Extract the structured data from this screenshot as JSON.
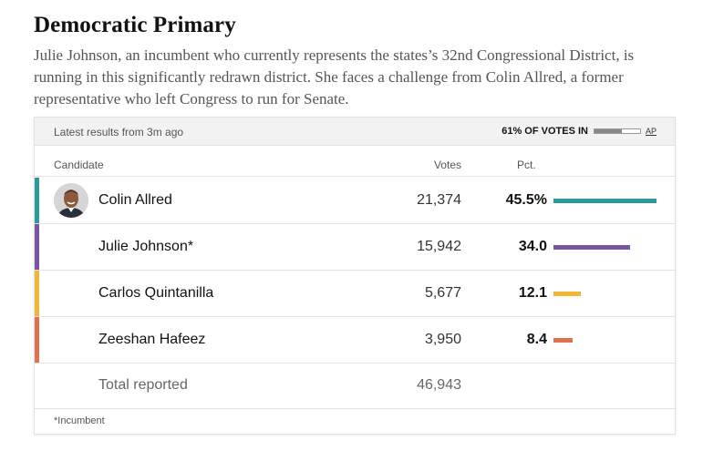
{
  "header": {
    "title": "Democratic Primary",
    "description": "Julie Johnson, an incumbent who currently represents the states’s 32nd Congressional District, is running in this significantly redrawn district. She faces a challenge from Colin Allred, a former representative who left Congress to run for Senate."
  },
  "results": {
    "latest": "Latest results from 3m ago",
    "votes_in_label": "61% OF VOTES IN",
    "votes_in_fraction": 0.61,
    "source": "AP",
    "columns": {
      "candidate": "Candidate",
      "votes": "Votes",
      "pct": "Pct."
    },
    "candidates": [
      {
        "name": "Colin Allred",
        "votes": "21,374",
        "pct_label": "45.5%",
        "pct": 45.5,
        "color": "#2b9a9a",
        "has_photo": true
      },
      {
        "name": "Julie Johnson*",
        "votes": "15,942",
        "pct_label": "34.0",
        "pct": 34.0,
        "color": "#7b54a3",
        "has_photo": false
      },
      {
        "name": "Carlos Quintanilla",
        "votes": "5,677",
        "pct_label": "12.1",
        "pct": 12.1,
        "color": "#f2b636",
        "has_photo": false
      },
      {
        "name": "Zeeshan Hafeez",
        "votes": "3,950",
        "pct_label": "8.4",
        "pct": 8.4,
        "color": "#e0704e",
        "has_photo": false
      }
    ],
    "total_label": "Total reported",
    "total_votes": "46,943",
    "footnote": "*Incumbent"
  }
}
